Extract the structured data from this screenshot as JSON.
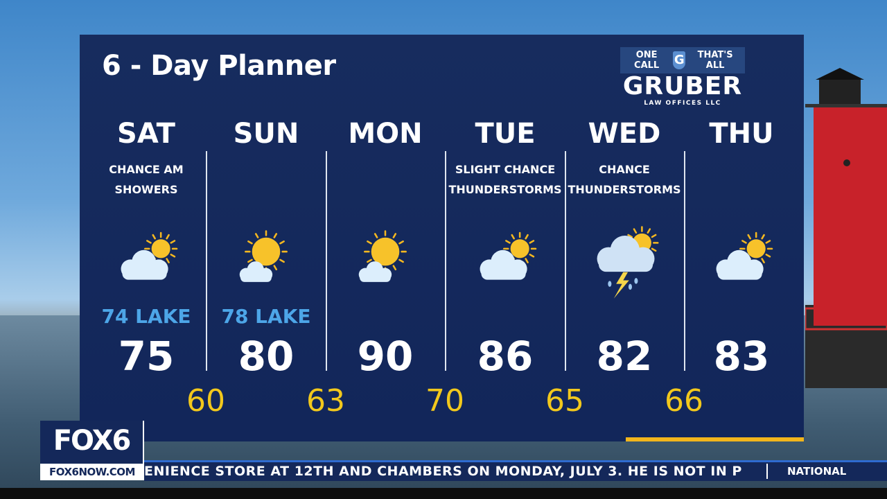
{
  "title": "6 - Day Planner",
  "sponsor": {
    "tagline_left": "ONE CALL",
    "tagline_right": "THAT'S ALL",
    "letter": "G",
    "name": "GRUBER",
    "sub": "LAW OFFICES LLC"
  },
  "days": [
    {
      "day": "SAT",
      "cond1": "CHANCE AM",
      "cond2": "SHOWERS",
      "icon": "partly-cloudy-icon",
      "lake": "74 LAKE",
      "high": "75"
    },
    {
      "day": "SUN",
      "cond1": "",
      "cond2": "",
      "icon": "mostly-sunny-icon",
      "lake": "78 LAKE",
      "high": "80"
    },
    {
      "day": "MON",
      "cond1": "",
      "cond2": "",
      "icon": "mostly-sunny-icon",
      "lake": "",
      "high": "90"
    },
    {
      "day": "TUE",
      "cond1": "SLIGHT CHANCE",
      "cond2": "THUNDERSTORMS",
      "icon": "partly-cloudy-icon",
      "lake": "",
      "high": "86"
    },
    {
      "day": "WED",
      "cond1": "CHANCE",
      "cond2": "THUNDERSTORMS",
      "icon": "thunderstorm-icon",
      "lake": "",
      "high": "82"
    },
    {
      "day": "THU",
      "cond1": "",
      "cond2": "",
      "icon": "partly-cloudy-icon",
      "lake": "",
      "high": "83"
    }
  ],
  "lows": [
    "60",
    "63",
    "70",
    "65",
    "66"
  ],
  "colors": {
    "panel": "#14285a",
    "low": "#f2c81c",
    "lake": "#4da6e8"
  },
  "station": {
    "name": "FOX6",
    "url": "FOX6NOW.COM"
  },
  "ticker": {
    "text": "ENIENCE STORE AT 12TH AND CHAMBERS ON MONDAY, JULY 3. HE IS NOT IN P",
    "section": "NATIONAL"
  }
}
